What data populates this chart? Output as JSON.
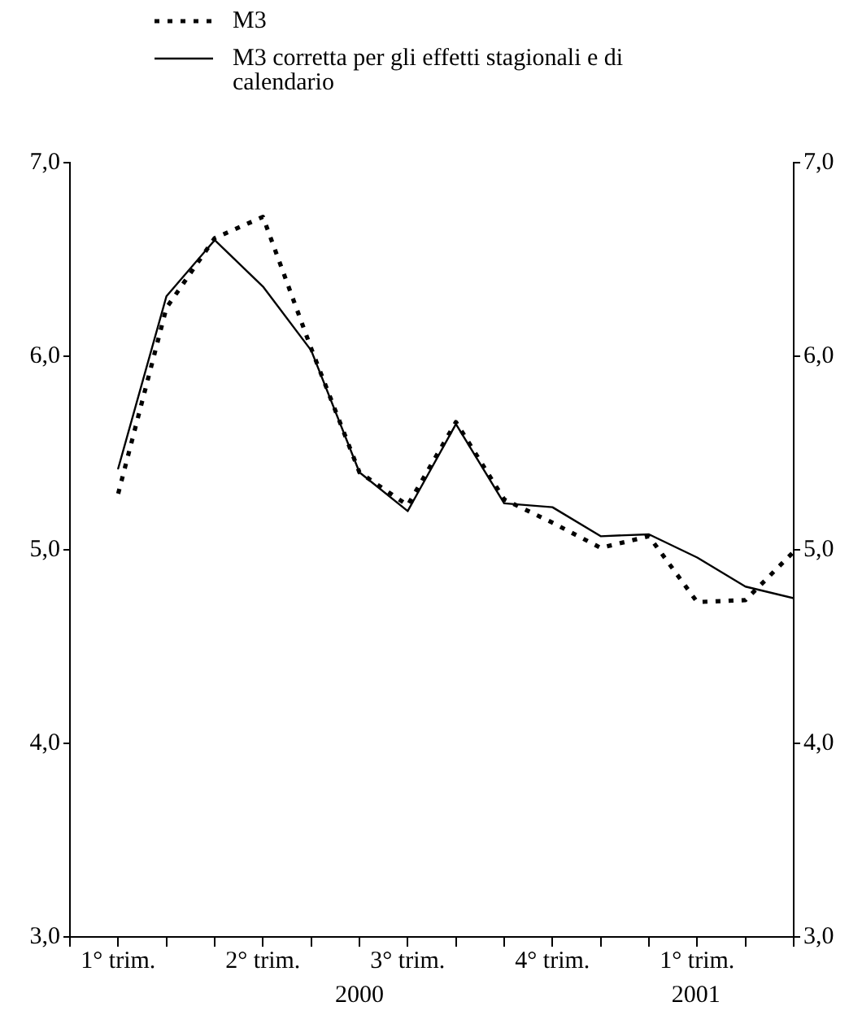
{
  "chart_data": {
    "type": "line",
    "categories": [
      "1° trim.",
      null,
      null,
      "2° trim.",
      null,
      null,
      "3° trim.",
      null,
      null,
      "4° trim.",
      null,
      null,
      "1° trim.",
      null,
      null
    ],
    "series": [
      {
        "name": "M3",
        "color": "#000000",
        "line_style": "dotted",
        "values": [
          5.29,
          6.25,
          6.61,
          6.72,
          6.04,
          5.4,
          5.23,
          5.66,
          5.26,
          5.14,
          5.01,
          5.07,
          4.73,
          4.74,
          4.99
        ]
      },
      {
        "name": "M3 corretta per gli effetti stagionali e di calendario",
        "color": "#000000",
        "line_style": "solid",
        "values": [
          5.42,
          6.31,
          6.6,
          6.36,
          6.03,
          5.4,
          5.2,
          5.65,
          5.24,
          5.22,
          5.07,
          5.08,
          4.96,
          4.81,
          4.75
        ]
      }
    ],
    "ylim": [
      3,
      7
    ],
    "yticks": [
      {
        "value": 3,
        "label": "3,0"
      },
      {
        "value": 4,
        "label": "4,0"
      },
      {
        "value": 5,
        "label": "5,0"
      },
      {
        "value": 6,
        "label": "6,0"
      },
      {
        "value": 7,
        "label": "7,0"
      }
    ],
    "y2lim": [
      3,
      7
    ],
    "y2ticks": [
      {
        "value": 3,
        "label": "3,0"
      },
      {
        "value": 4,
        "label": "4,0"
      },
      {
        "value": 5,
        "label": "5,0"
      },
      {
        "value": 6,
        "label": "6,0"
      },
      {
        "value": 7,
        "label": "7,0"
      }
    ],
    "annotations": [
      "2000",
      "2001"
    ],
    "legend": "top left",
    "grid": false,
    "marker": "none"
  }
}
